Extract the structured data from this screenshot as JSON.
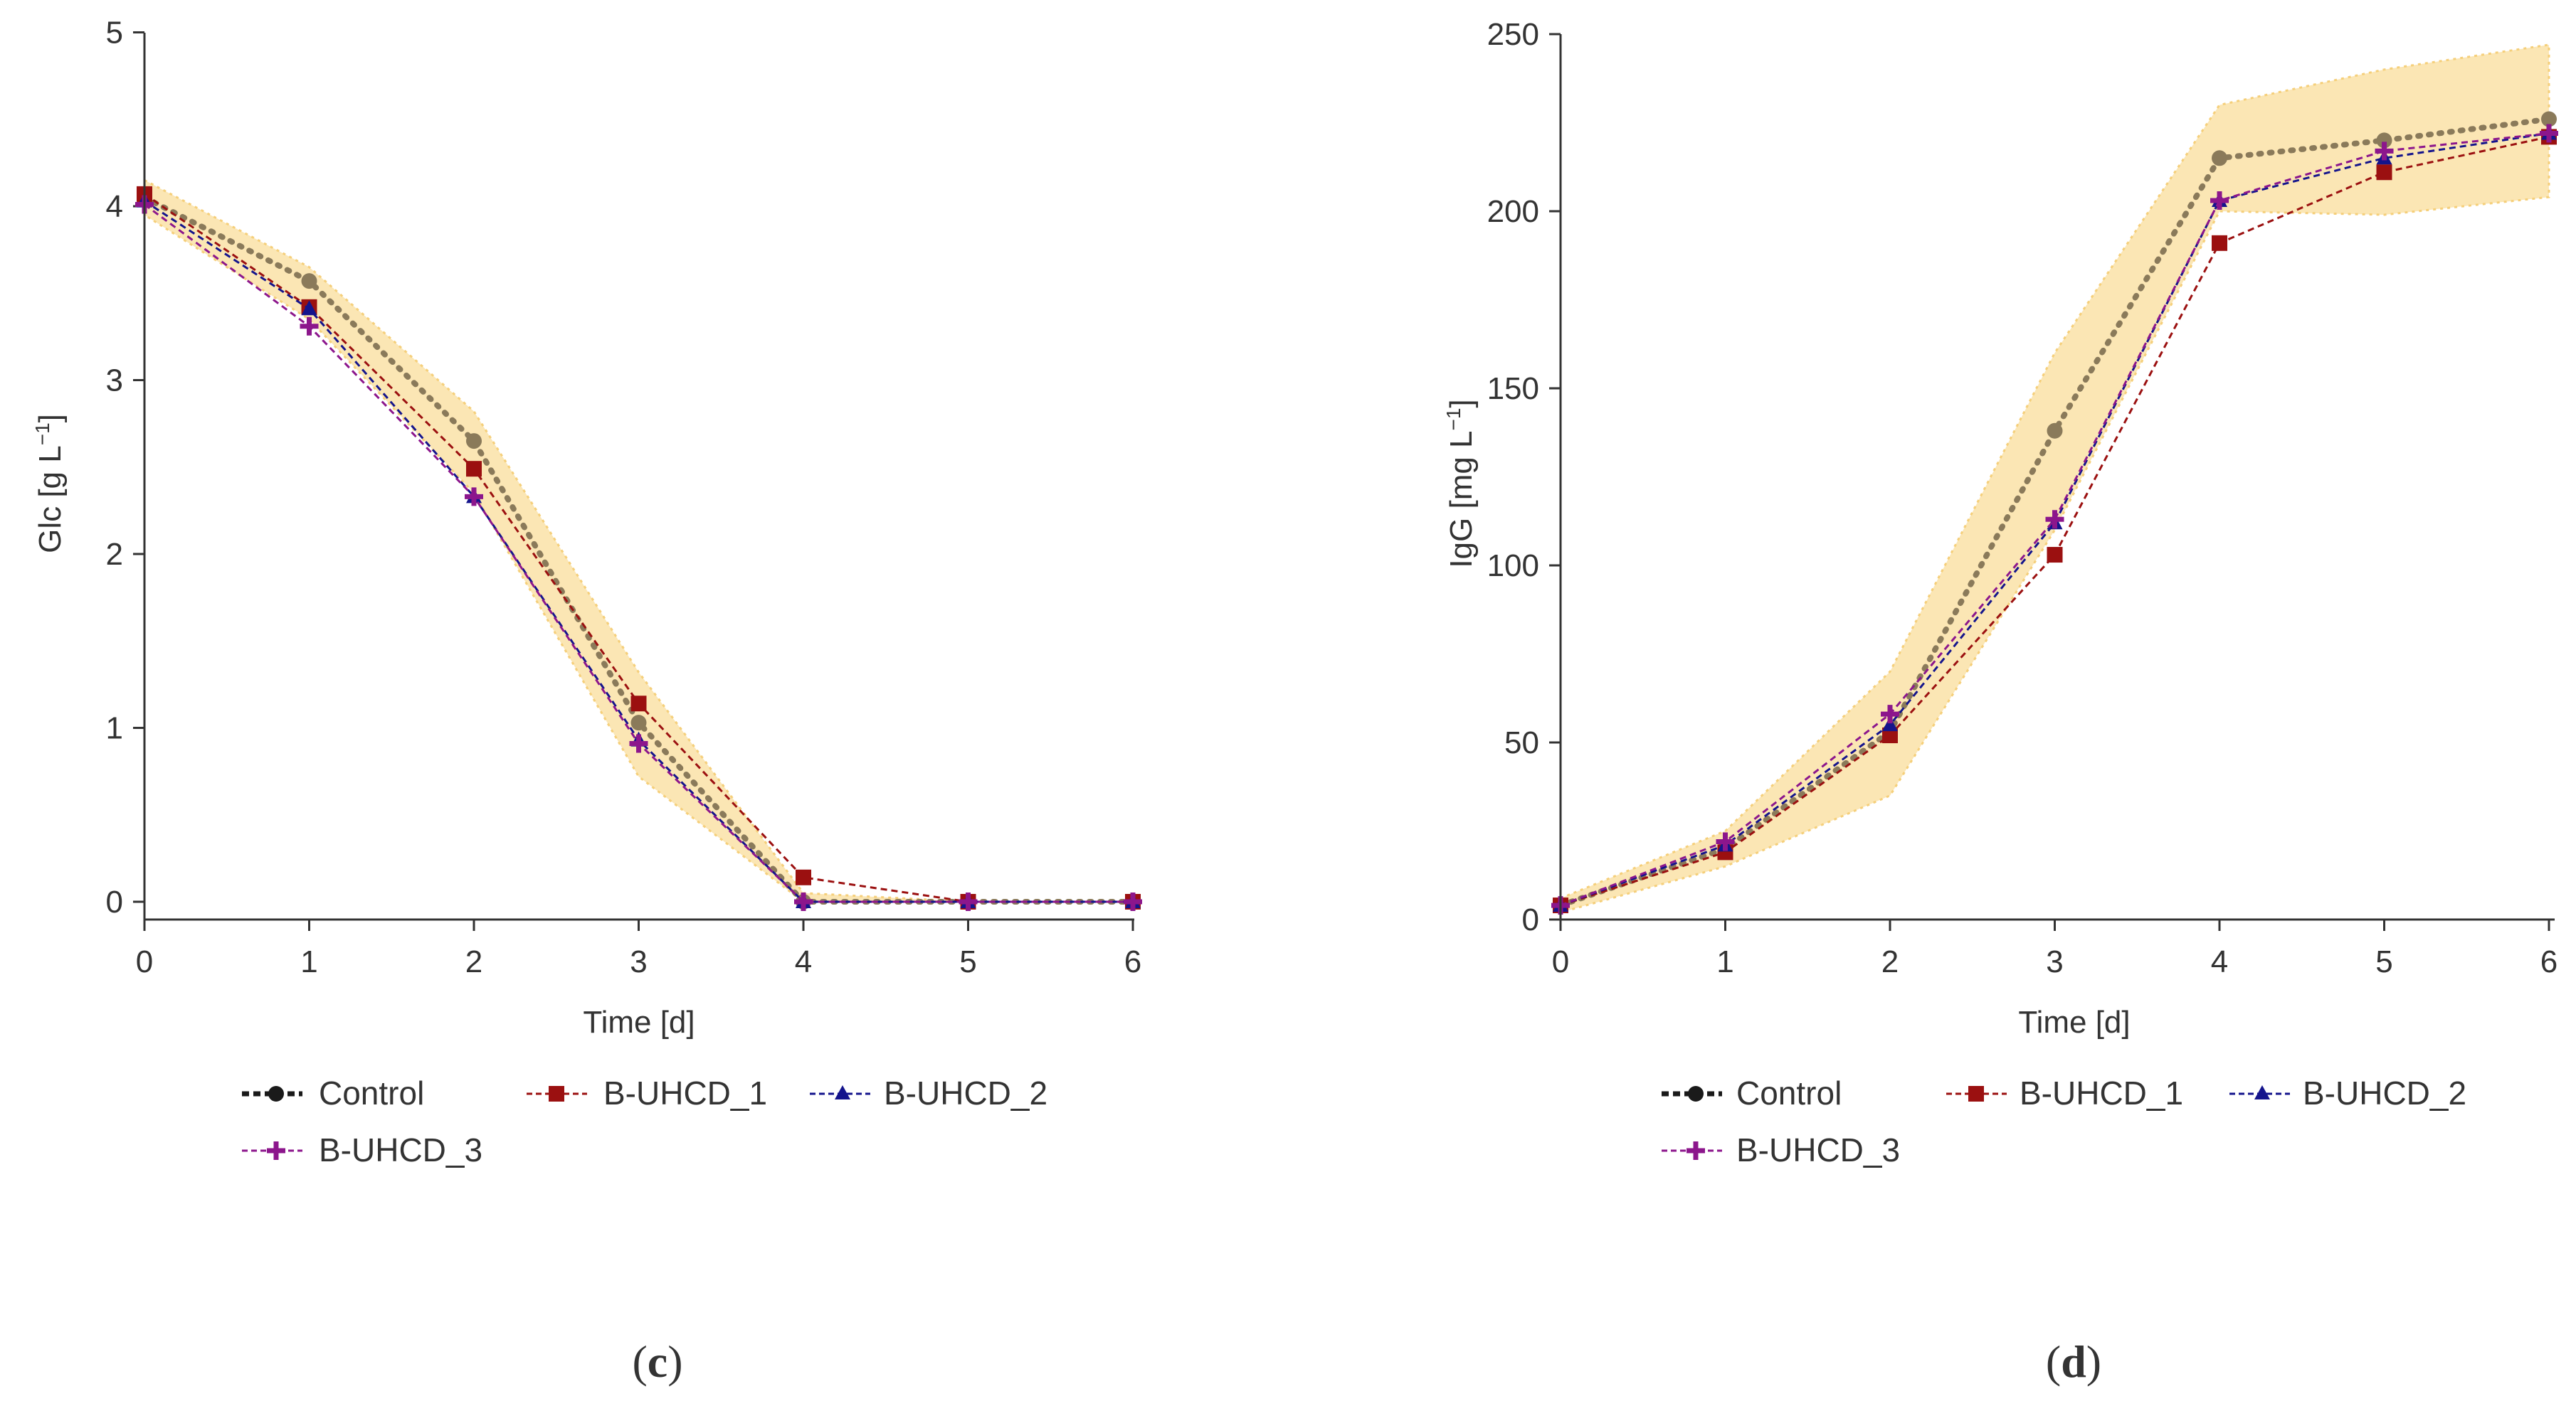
{
  "chart_data": [
    {
      "panel_label": "c",
      "type": "line",
      "title": "",
      "xlabel": "Time [d]",
      "ylabel_main": "Glc [g L",
      "ylabel_sup": "−1",
      "ylabel_close": "]",
      "xlim": [
        0,
        6
      ],
      "ylim": [
        -0.1,
        5
      ],
      "x_ticks": [
        0,
        1,
        2,
        3,
        4,
        5,
        6
      ],
      "y_ticks": [
        0,
        1,
        2,
        3,
        4,
        5
      ],
      "x": [
        0,
        1,
        2,
        3,
        4,
        5,
        6
      ],
      "band": {
        "upper": [
          4.15,
          3.65,
          2.82,
          1.32,
          0.05,
          0.0,
          0.0
        ],
        "lower": [
          3.95,
          3.35,
          2.35,
          0.72,
          0.0,
          0.0,
          0.0
        ]
      },
      "series": [
        {
          "name": "Control",
          "values": [
            4.05,
            3.57,
            2.65,
            1.03,
            0.0,
            0.0,
            0.0
          ]
        },
        {
          "name": "B-UHCD_1",
          "values": [
            4.07,
            3.42,
            2.49,
            1.14,
            0.14,
            0.0,
            0.0
          ]
        },
        {
          "name": "B-UHCD_2",
          "values": [
            4.03,
            3.41,
            2.33,
            0.93,
            0.0,
            0.0,
            0.0
          ]
        },
        {
          "name": "B-UHCD_3",
          "values": [
            4.01,
            3.31,
            2.33,
            0.91,
            0.0,
            0.0,
            0.0
          ]
        }
      ]
    },
    {
      "panel_label": "d",
      "type": "line",
      "title": "",
      "xlabel": "Time [d]",
      "ylabel_main": "IgG [mg L",
      "ylabel_sup": "−1",
      "ylabel_close": "]",
      "xlim": [
        0,
        6
      ],
      "ylim": [
        0,
        250
      ],
      "x_ticks": [
        0,
        1,
        2,
        3,
        4,
        5,
        6
      ],
      "y_ticks": [
        0,
        50,
        100,
        150,
        200,
        250
      ],
      "x": [
        0,
        1,
        2,
        3,
        4,
        5,
        6
      ],
      "band": {
        "upper": [
          6,
          25,
          70,
          160,
          230,
          240,
          247
        ],
        "lower": [
          2,
          15,
          35,
          110,
          200,
          199,
          204
        ]
      },
      "series": [
        {
          "name": "Control",
          "values": [
            4,
            20,
            53,
            138,
            215,
            220,
            226
          ]
        },
        {
          "name": "B-UHCD_1",
          "values": [
            4,
            19,
            52,
            103,
            191,
            211,
            221
          ]
        },
        {
          "name": "B-UHCD_2",
          "values": [
            4,
            21,
            55,
            112,
            203,
            215,
            222
          ]
        },
        {
          "name": "B-UHCD_3",
          "values": [
            4,
            22,
            58,
            113,
            203,
            217,
            222
          ]
        }
      ]
    }
  ],
  "legend_labels": [
    "Control",
    "B-UHCD_1",
    "B-UHCD_2",
    "B-UHCD_3"
  ],
  "colors": {
    "Control": "#8a7a5a",
    "Control_legend": "#1a1a1a",
    "B-UHCD_1": "#9b1010",
    "B-UHCD_2": "#14148c",
    "B-UHCD_3": "#8c168c",
    "band": "#fbe6b4",
    "band_edge": "#f5cf7a",
    "axis": "#333333"
  }
}
